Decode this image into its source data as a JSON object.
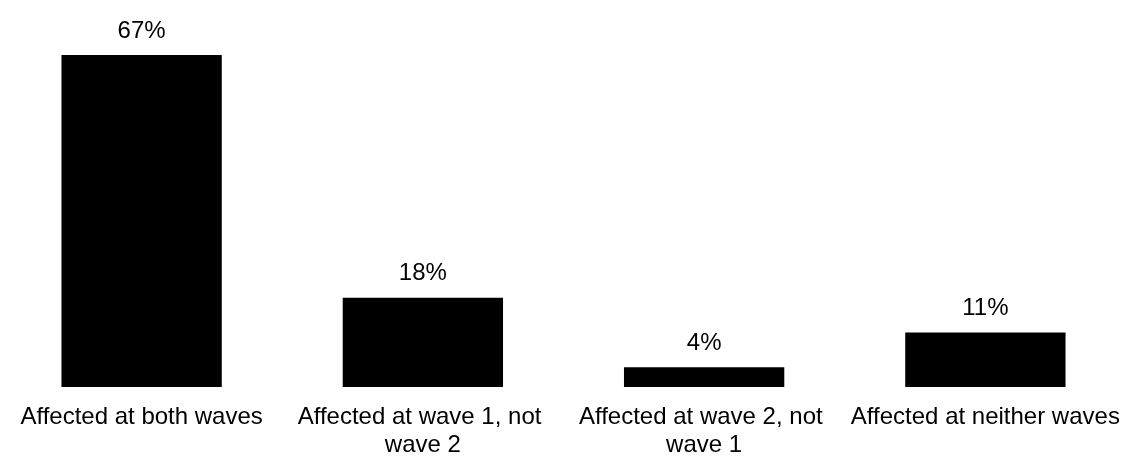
{
  "chart_data": {
    "type": "bar",
    "categories": [
      "Affected at both waves",
      "Affected at wave 1, not wave 2",
      "Affected at wave 2, not wave 1",
      "Affected at neither waves"
    ],
    "values": [
      67,
      18,
      4,
      11
    ],
    "color": "#000000",
    "value_labels": [
      "67%",
      "18%",
      "4%",
      "11%"
    ],
    "grid": false
  }
}
